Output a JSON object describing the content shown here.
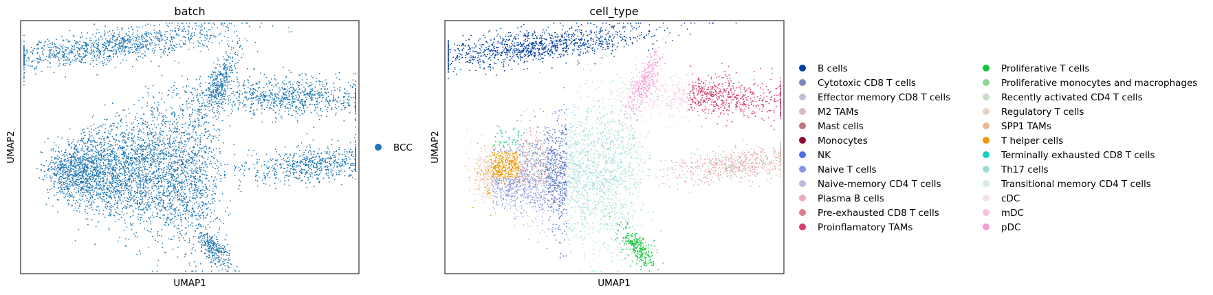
{
  "chart_data": [
    {
      "type": "scatter",
      "title": "batch",
      "xlabel": "UMAP1",
      "ylabel": "UMAP2",
      "xticks": [],
      "yticks": [],
      "grid": false,
      "legend": {
        "placement": "right",
        "columns": 1
      },
      "series": [
        {
          "name": "BCC",
          "color": "#1f77b4"
        }
      ]
    },
    {
      "type": "scatter",
      "title": "cell_type",
      "xlabel": "UMAP1",
      "ylabel": "UMAP2",
      "xticks": [],
      "yticks": [],
      "grid": false,
      "legend": {
        "placement": "right",
        "columns": 2
      },
      "series": [
        {
          "name": "B cells",
          "color": "#023fa5"
        },
        {
          "name": "Cytotoxic CD8 T cells",
          "color": "#7d87b9"
        },
        {
          "name": "Effector memory CD8 T cells",
          "color": "#bec1d4"
        },
        {
          "name": "M2 TAMs",
          "color": "#d6bcc0"
        },
        {
          "name": "Mast cells",
          "color": "#bb7784"
        },
        {
          "name": "Monocytes",
          "color": "#8e063b"
        },
        {
          "name": "NK",
          "color": "#4a6fe3"
        },
        {
          "name": "Naive T cells",
          "color": "#8595e1"
        },
        {
          "name": "Naive-memory CD4 T cells",
          "color": "#b5bbe3"
        },
        {
          "name": "Plasma B cells",
          "color": "#e6afb9"
        },
        {
          "name": "Pre-exhausted CD8 T cells",
          "color": "#e07b91"
        },
        {
          "name": "Proinflamatory TAMs",
          "color": "#d33f6a"
        },
        {
          "name": "Proliferative T cells",
          "color": "#11c638"
        },
        {
          "name": "Proliferative monocytes and macrophages",
          "color": "#8dd593"
        },
        {
          "name": "Recently activated CD4 T cells",
          "color": "#c6dec7"
        },
        {
          "name": "Regulatory T cells",
          "color": "#ead3c6"
        },
        {
          "name": "SPP1 TAMs",
          "color": "#f0b98d"
        },
        {
          "name": "T helper cells",
          "color": "#ef9708"
        },
        {
          "name": "Terminally exhausted CD8 T cells",
          "color": "#0fcfc0"
        },
        {
          "name": "Th17 cells",
          "color": "#9cded6"
        },
        {
          "name": "Transitional memory CD4 T cells",
          "color": "#d5eae7"
        },
        {
          "name": "cDC",
          "color": "#f3e1eb"
        },
        {
          "name": "mDC",
          "color": "#f6c4e1"
        },
        {
          "name": "pDC",
          "color": "#f79cd4"
        }
      ]
    }
  ]
}
